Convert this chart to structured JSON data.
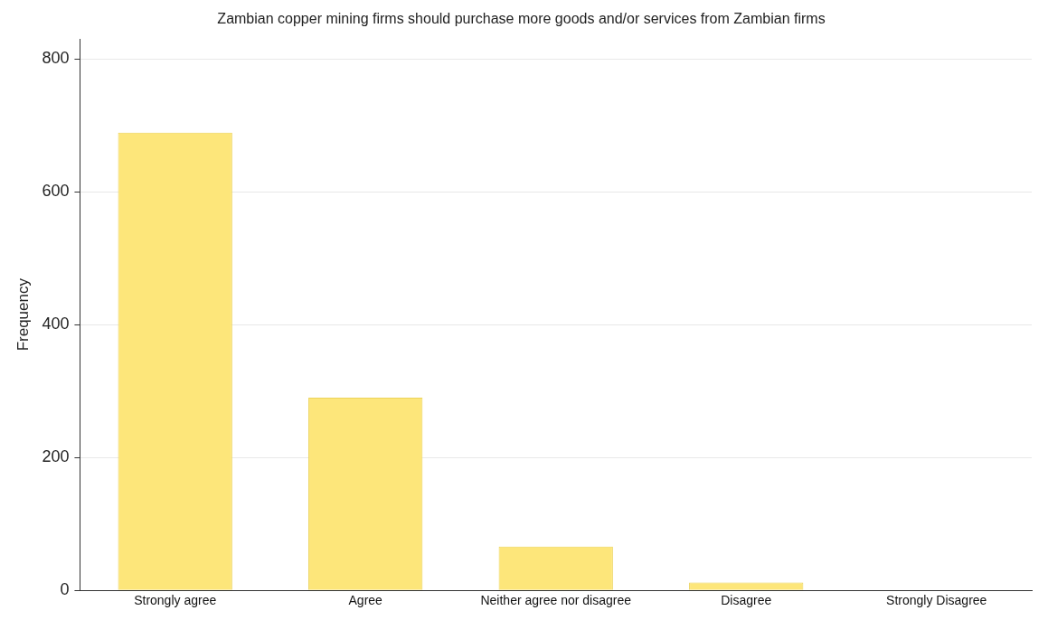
{
  "chart_data": {
    "type": "bar",
    "title": "Zambian copper mining firms should purchase more goods and/or services from Zambian firms",
    "ylabel": "Frequency",
    "categories": [
      "Strongly agree",
      "Agree",
      "Neither agree nor disagree",
      "Disagree",
      "Strongly Disagree"
    ],
    "values": [
      689,
      290,
      66,
      12,
      0
    ],
    "color": "#fde67a",
    "ylim": [
      0,
      830
    ],
    "yticks": [
      0,
      200,
      400,
      600,
      800
    ],
    "grid": "y"
  }
}
